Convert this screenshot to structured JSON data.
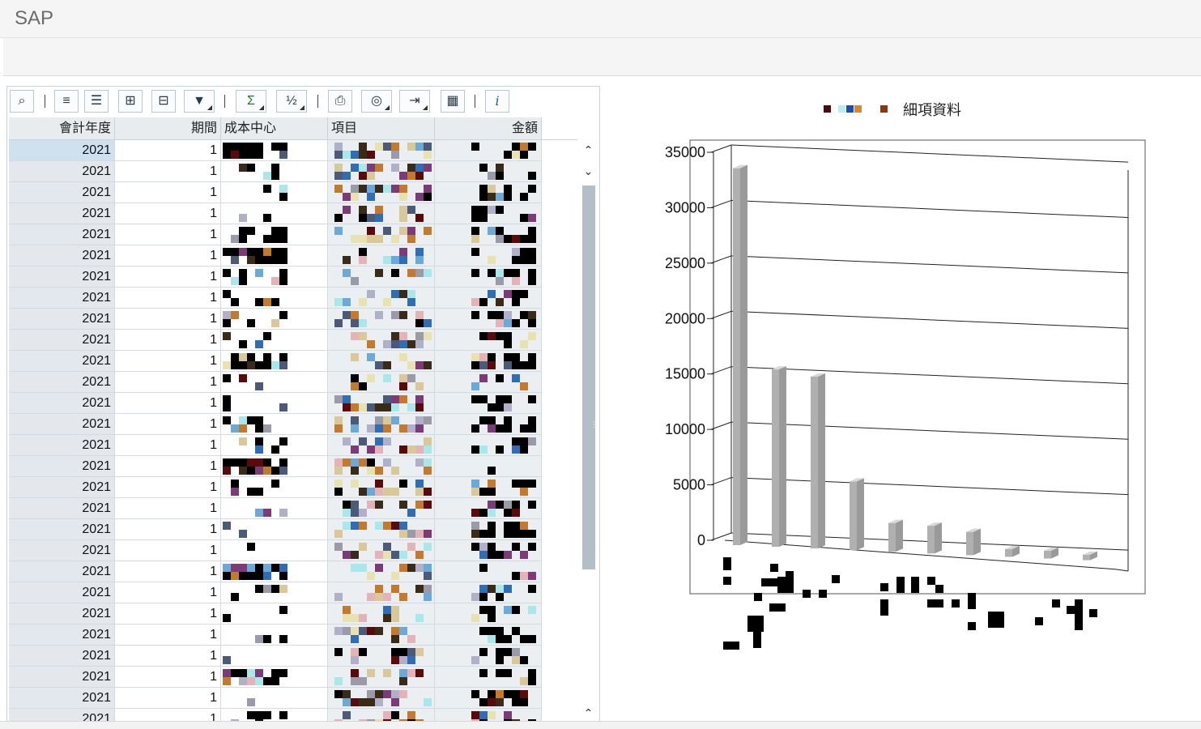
{
  "window": {
    "title": "SAP"
  },
  "grid": {
    "toolbar": [
      {
        "name": "details-button",
        "icon": "details-icon",
        "glyph": "⌕",
        "dropdown": false
      },
      {
        "name": "sort-ascending-button",
        "icon": "sort-ascending-icon",
        "glyph": "≡",
        "dropdown": false
      },
      {
        "name": "sort-descending-button",
        "icon": "sort-descending-icon",
        "glyph": "☰",
        "dropdown": false
      },
      {
        "name": "find-button",
        "icon": "binoculars-icon",
        "glyph": "⊞",
        "dropdown": false
      },
      {
        "name": "find-next-button",
        "icon": "binoculars-next-icon",
        "glyph": "⊟",
        "dropdown": false
      },
      {
        "name": "filter-button",
        "icon": "filter-icon",
        "glyph": "▼",
        "dropdown": true
      },
      {
        "name": "total-button",
        "icon": "sum-icon",
        "glyph": "Σ",
        "dropdown": true
      },
      {
        "name": "subtotal-button",
        "icon": "subtotal-icon",
        "glyph": "½",
        "dropdown": true
      },
      {
        "name": "print-button",
        "icon": "printer-icon",
        "glyph": "⎙",
        "dropdown": false
      },
      {
        "name": "views-button",
        "icon": "views-icon",
        "glyph": "◎",
        "dropdown": true
      },
      {
        "name": "export-button",
        "icon": "export-icon",
        "glyph": "⇥",
        "dropdown": true
      },
      {
        "name": "layout-button",
        "icon": "table-layout-icon",
        "glyph": "▦",
        "dropdown": false
      },
      {
        "name": "info-button",
        "icon": "info-icon",
        "glyph": "i",
        "dropdown": false
      }
    ],
    "columns": [
      "會計年度",
      "期間",
      "成本中心",
      "項目",
      "金額"
    ],
    "rows": [
      {
        "year": "2021",
        "period": "1"
      },
      {
        "year": "2021",
        "period": "1"
      },
      {
        "year": "2021",
        "period": "1"
      },
      {
        "year": "2021",
        "period": "1"
      },
      {
        "year": "2021",
        "period": "1"
      },
      {
        "year": "2021",
        "period": "1"
      },
      {
        "year": "2021",
        "period": "1"
      },
      {
        "year": "2021",
        "period": "1"
      },
      {
        "year": "2021",
        "period": "1"
      },
      {
        "year": "2021",
        "period": "1"
      },
      {
        "year": "2021",
        "period": "1"
      },
      {
        "year": "2021",
        "period": "1"
      },
      {
        "year": "2021",
        "period": "1"
      },
      {
        "year": "2021",
        "period": "1"
      },
      {
        "year": "2021",
        "period": "1"
      },
      {
        "year": "2021",
        "period": "1"
      },
      {
        "year": "2021",
        "period": "1"
      },
      {
        "year": "2021",
        "period": "1"
      },
      {
        "year": "2021",
        "period": "1"
      },
      {
        "year": "2021",
        "period": "1"
      },
      {
        "year": "2021",
        "period": "1"
      },
      {
        "year": "2021",
        "period": "1"
      },
      {
        "year": "2021",
        "period": "1"
      },
      {
        "year": "2021",
        "period": "1"
      },
      {
        "year": "2021",
        "period": "1"
      },
      {
        "year": "2021",
        "period": "1"
      },
      {
        "year": "2021",
        "period": "1"
      },
      {
        "year": "2021",
        "period": "1"
      }
    ],
    "scroll": {
      "up_glyph": "⌃",
      "down_glyph": "⌄",
      "grip": "⋮"
    }
  },
  "chart_data": {
    "type": "bar",
    "legend_label": "細項資料",
    "legend_swatch_colors": [
      "#4a0b0b",
      "#b8eef0",
      "#1f4fa8",
      "#d4893a",
      "#8b3a0f"
    ],
    "yticks": [
      "0",
      "5000",
      "10000",
      "15000",
      "20000",
      "25000",
      "30000",
      "35000"
    ],
    "ylim": [
      0,
      35000
    ],
    "values": [
      34000,
      16000,
      15500,
      6200,
      2600,
      2500,
      2100,
      700,
      700,
      500
    ],
    "bar_color": "#b0b0b0"
  }
}
